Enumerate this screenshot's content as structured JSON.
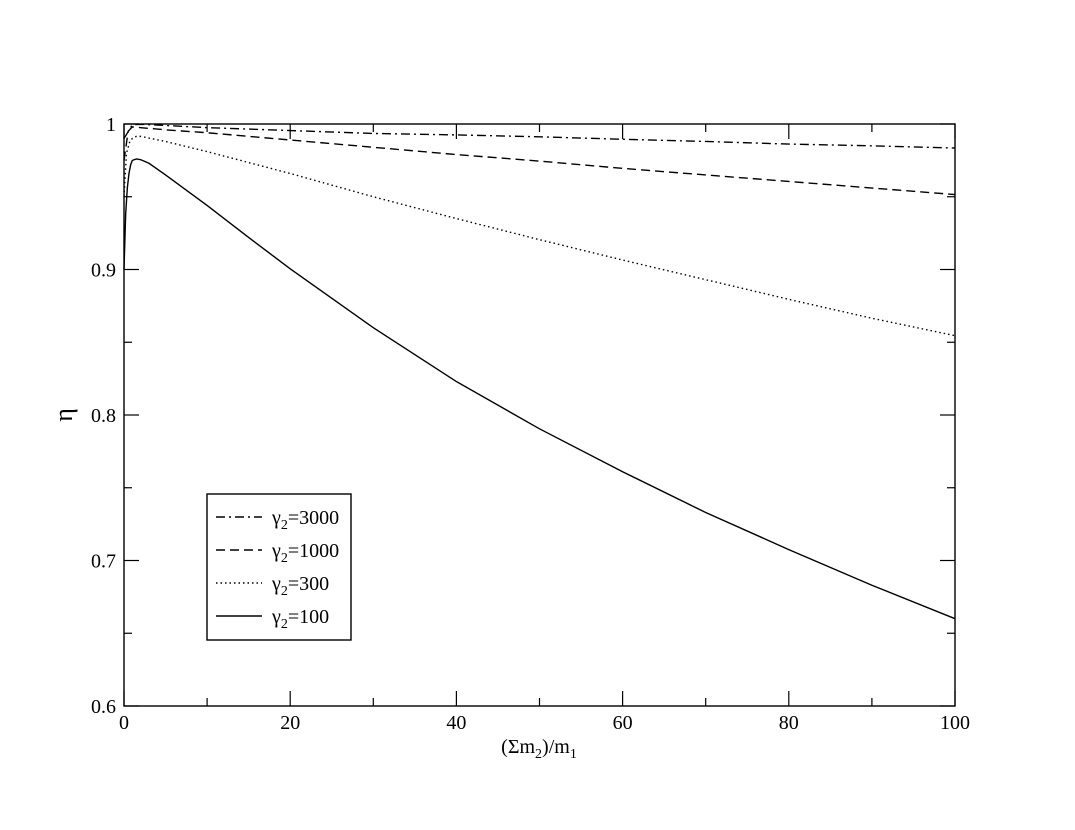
{
  "chart_data": {
    "type": "line",
    "xlabel": {
      "text": "(Σm",
      "sub1": "2",
      "mid": ")/m",
      "sub2": "1"
    },
    "ylabel": "η",
    "xlim": [
      0,
      100
    ],
    "ylim": [
      0.6,
      1.0
    ],
    "x_ticks": [
      0,
      20,
      40,
      60,
      80,
      100
    ],
    "x_tick_labels": [
      "0",
      "20",
      "40",
      "60",
      "80",
      "100"
    ],
    "y_ticks": [
      0.6,
      0.7,
      0.8,
      0.9,
      1.0
    ],
    "y_tick_labels": [
      "0.6",
      "0.7",
      "0.8",
      "0.9",
      "1"
    ],
    "grid": false,
    "legend_position": "bottom-left",
    "series": [
      {
        "name": "γ2=3000",
        "label_main": "γ",
        "label_sub": "2",
        "label_rest": "=3000",
        "style": "dashdot",
        "x": [
          0,
          1,
          2,
          5,
          10,
          20,
          30,
          40,
          50,
          60,
          70,
          80,
          90,
          100
        ],
        "y": [
          0.99,
          0.9995,
          0.9998,
          0.999,
          0.9975,
          0.9955,
          0.9935,
          0.9925,
          0.9912,
          0.9895,
          0.988,
          0.9862,
          0.985,
          0.9835
        ]
      },
      {
        "name": "γ2=1000",
        "label_main": "γ",
        "label_sub": "2",
        "label_rest": "=1000",
        "style": "dashed",
        "x": [
          0,
          0.5,
          1,
          2,
          5,
          10,
          20,
          30,
          40,
          50,
          60,
          70,
          80,
          90,
          100
        ],
        "y": [
          0.975,
          0.995,
          0.998,
          0.9975,
          0.996,
          0.994,
          0.989,
          0.984,
          0.979,
          0.9745,
          0.9695,
          0.965,
          0.9605,
          0.956,
          0.9515
        ]
      },
      {
        "name": "γ2=300",
        "label_main": "γ",
        "label_sub": "2",
        "label_rest": "=300",
        "style": "dotted",
        "x": [
          0,
          0.3,
          0.7,
          1,
          1.5,
          2,
          5,
          10,
          20,
          30,
          40,
          50,
          60,
          70,
          80,
          90,
          100
        ],
        "y": [
          0.95,
          0.98,
          0.988,
          0.99,
          0.9915,
          0.9915,
          0.988,
          0.981,
          0.966,
          0.95,
          0.935,
          0.9205,
          0.9065,
          0.893,
          0.8795,
          0.8665,
          0.8545
        ]
      },
      {
        "name": "γ2=100",
        "label_main": "γ",
        "label_sub": "2",
        "label_rest": "=100",
        "style": "solid",
        "x": [
          0,
          0.2,
          0.4,
          0.6,
          0.8,
          1.0,
          1.5,
          2,
          3,
          5,
          10,
          15,
          20,
          30,
          40,
          50,
          60,
          70,
          80,
          90,
          100
        ],
        "y": [
          0.9,
          0.938,
          0.956,
          0.966,
          0.972,
          0.975,
          0.976,
          0.9755,
          0.973,
          0.965,
          0.944,
          0.922,
          0.9005,
          0.86,
          0.823,
          0.7905,
          0.761,
          0.733,
          0.7075,
          0.683,
          0.66
        ]
      }
    ]
  }
}
